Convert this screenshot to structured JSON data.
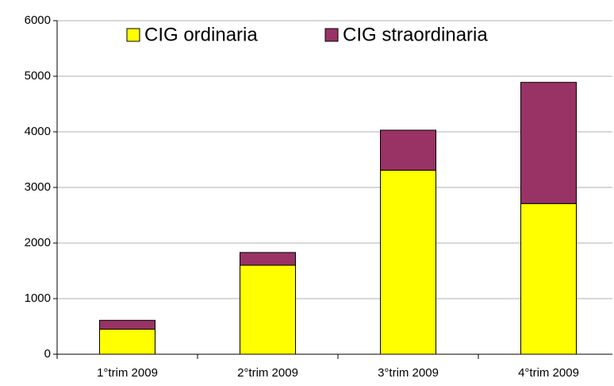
{
  "chart_data": {
    "type": "stacked_bar",
    "categories": [
      "1°trim 2009",
      "2°trim 2009",
      "3°trim 2009",
      "4°trim 2009"
    ],
    "series": [
      {
        "name": "CIG ordinaria",
        "color": "#ffff00",
        "values": [
          450,
          1600,
          3310,
          2710
        ]
      },
      {
        "name": "CIG straordinaria",
        "color": "#993366",
        "values": [
          160,
          230,
          720,
          2180
        ]
      }
    ],
    "ylim": [
      0,
      6000
    ],
    "yticks": [
      0,
      1000,
      2000,
      3000,
      4000,
      5000,
      6000
    ],
    "grid": true,
    "legend": "top"
  }
}
